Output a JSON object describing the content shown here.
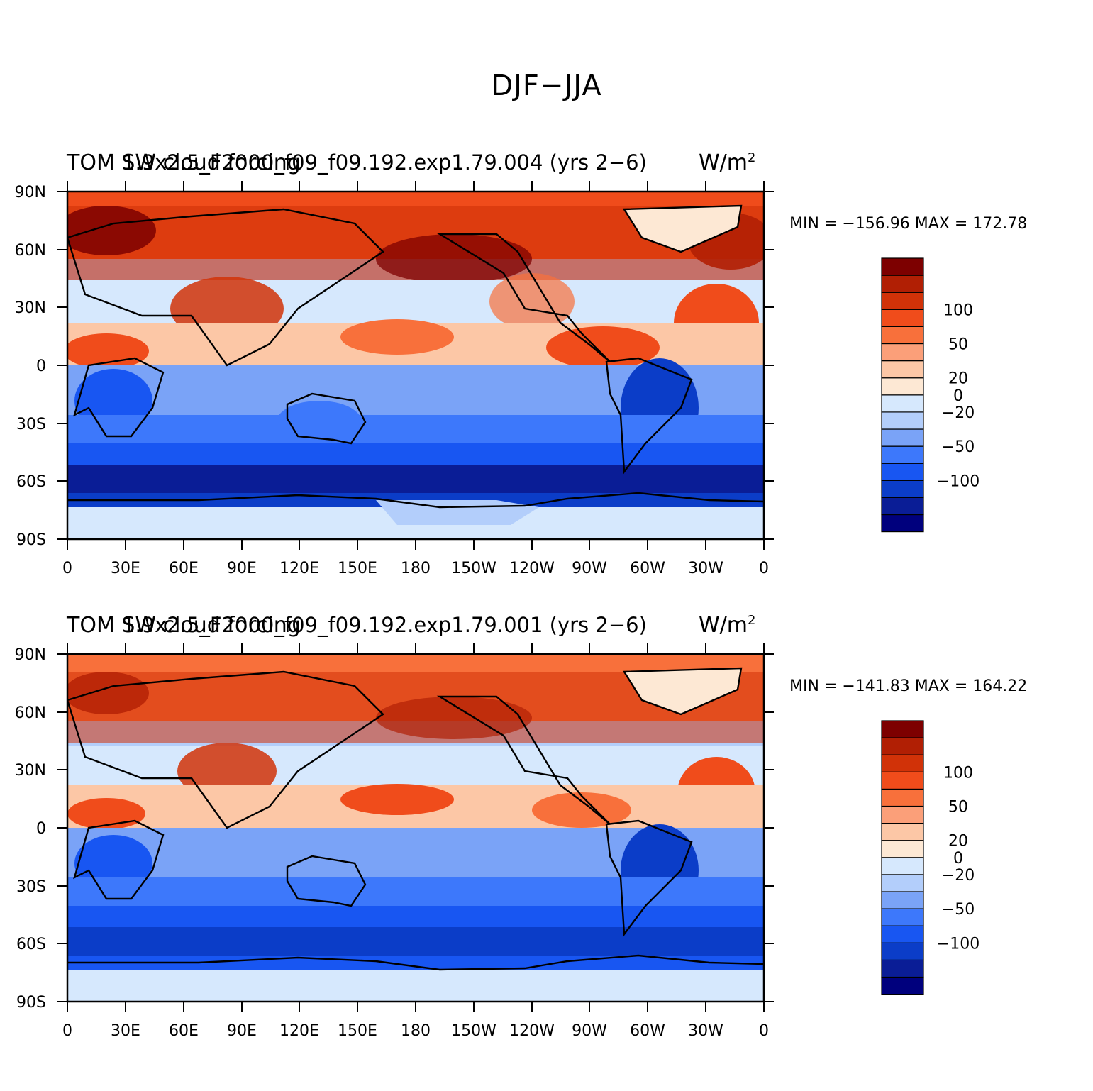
{
  "figure": {
    "title": "DJF−JJA"
  },
  "axes": {
    "lat_labels": [
      "90N",
      "60N",
      "30N",
      "0",
      "30S",
      "60S",
      "90S"
    ],
    "lon_labels": [
      "0",
      "30E",
      "60E",
      "90E",
      "120E",
      "150E",
      "180",
      "150W",
      "120W",
      "90W",
      "60W",
      "30W",
      "0"
    ]
  },
  "colorbar": {
    "colors": [
      "#00007d",
      "#0a1d96",
      "#0b3dc8",
      "#1856f2",
      "#3d78fb",
      "#7aa3f7",
      "#b3cefb",
      "#d6e8fd",
      "#fde8d4",
      "#fcc7a6",
      "#fb9f79",
      "#f8703b",
      "#f04c1b",
      "#d13208",
      "#b11f04",
      "#7d0000"
    ],
    "labels": [
      "−100",
      "−50",
      "−20",
      "0",
      "20",
      "50",
      "100"
    ]
  },
  "panels": [
    {
      "title_left": "TOM SW cloud forcing",
      "title_center": "1.9x2.5_F2000_f09_f09.192.exp1.79.004 (yrs 2−6)",
      "units": "W/m",
      "units_exp": "2",
      "min_max": "MIN = −156.96  MAX = 172.78"
    },
    {
      "title_left": "TOM SW cloud forcing",
      "title_center": "1.9x2.5_F2000_f09_f09.192.exp1.79.001 (yrs 2−6)",
      "units": "W/m",
      "units_exp": "2",
      "min_max": "MIN = −141.83  MAX = 164.22"
    }
  ]
}
